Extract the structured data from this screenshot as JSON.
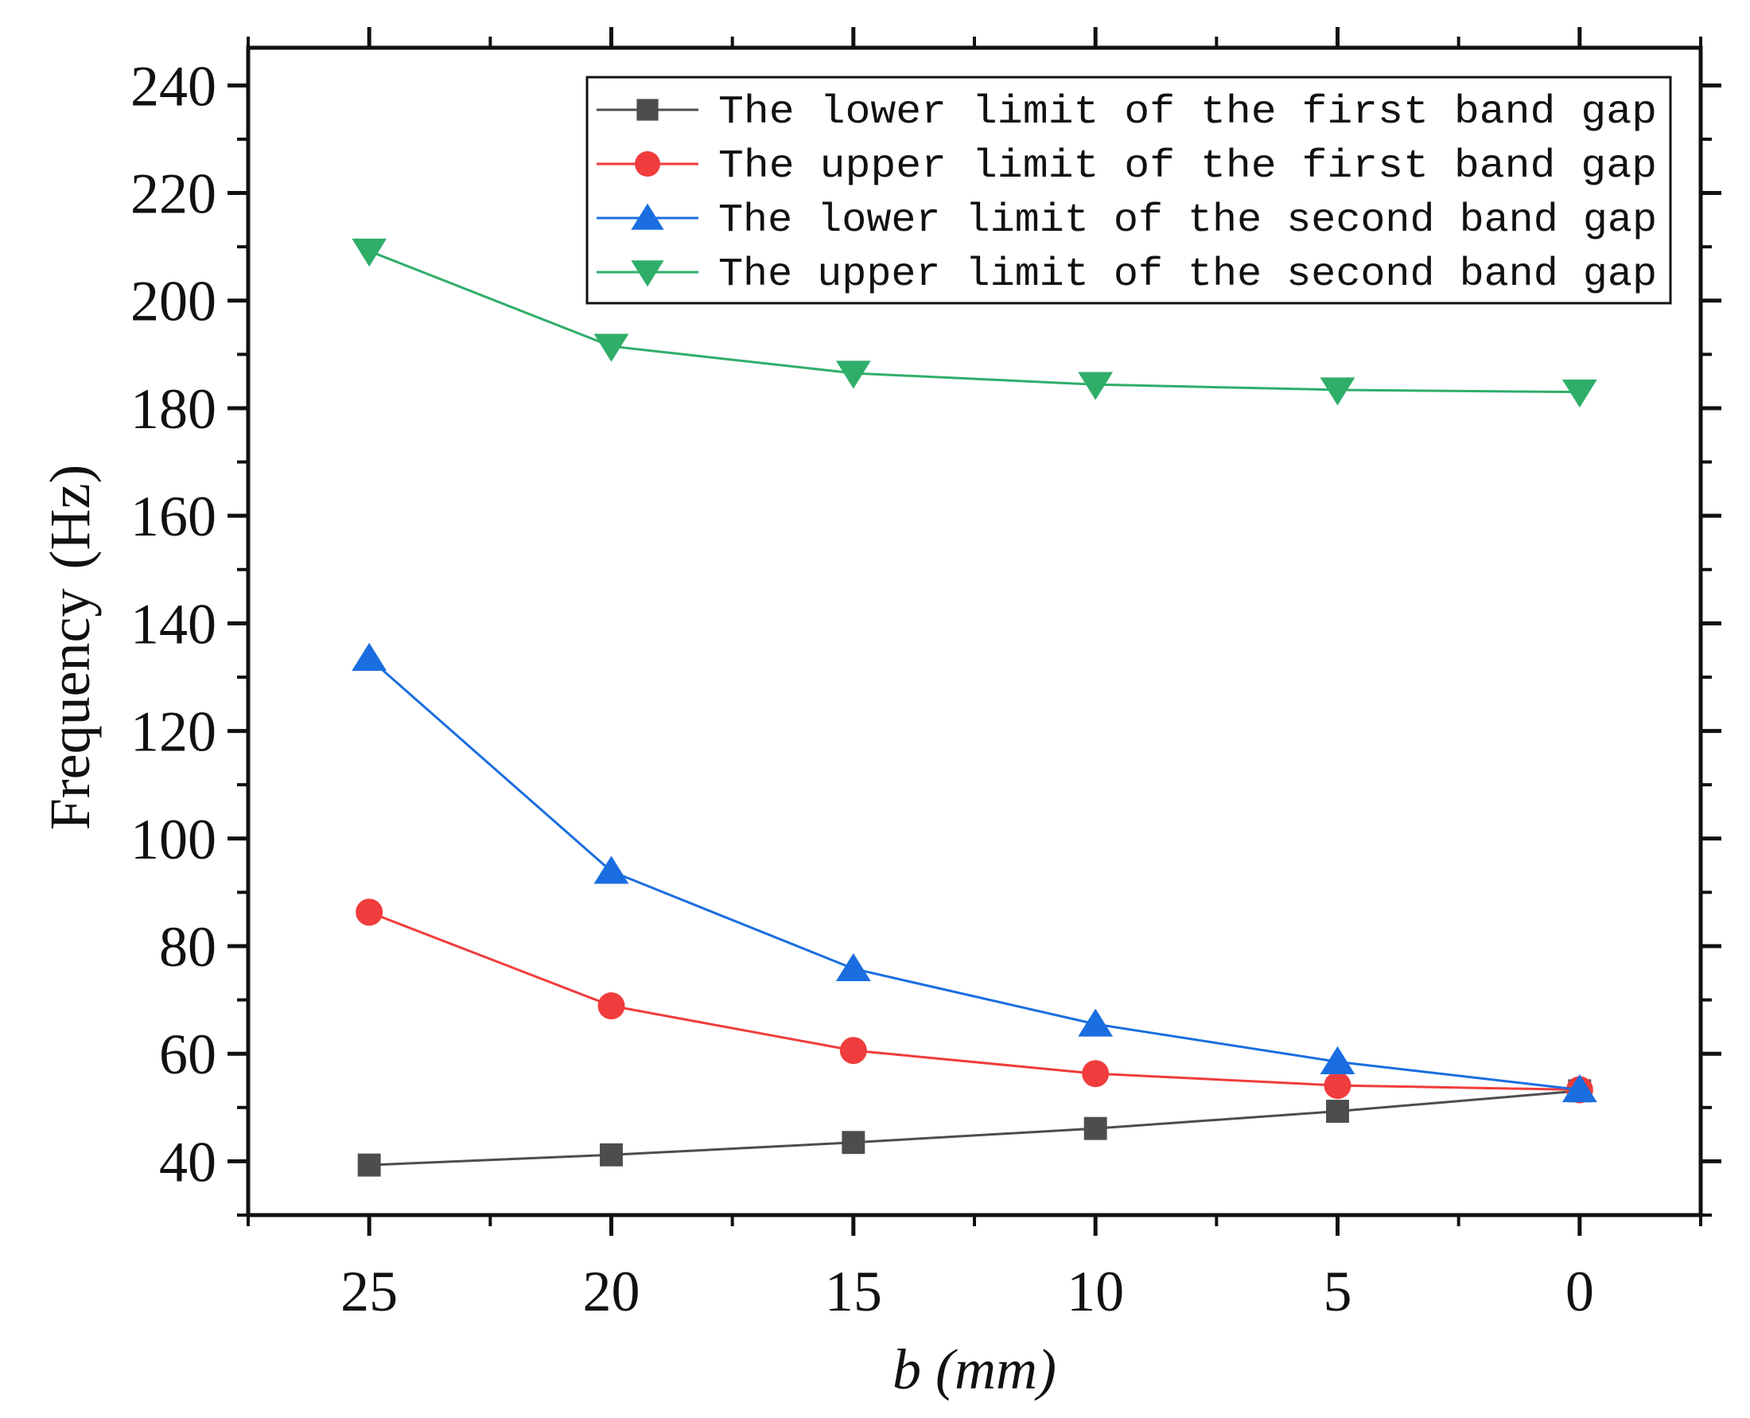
{
  "chart_data": {
    "type": "line",
    "title": "",
    "xlabel": "b (mm)",
    "xlabel_parts": {
      "var": "b",
      "unit": " (mm)"
    },
    "ylabel": "Frequency (Hz)",
    "ylabel_parts": {
      "word": "Frequency",
      "unit": "(Hz)"
    },
    "x": [
      25,
      20,
      15,
      10,
      5,
      0
    ],
    "xlim": [
      27.5,
      -2.5
    ],
    "ylim": [
      30,
      247
    ],
    "x_ticks": [
      25,
      20,
      15,
      10,
      5,
      0
    ],
    "x_tick_labels": [
      "25",
      "20",
      "15",
      "10",
      "5",
      "0"
    ],
    "y_ticks": [
      40,
      60,
      80,
      100,
      120,
      140,
      160,
      180,
      200,
      220,
      240
    ],
    "y_tick_labels": [
      "40",
      "60",
      "80",
      "100",
      "120",
      "140",
      "160",
      "180",
      "200",
      "220",
      "240"
    ],
    "grid": false,
    "legend_position": "top-right",
    "series": [
      {
        "name": "The lower limit of the first band gap",
        "color": "#4d4d4d",
        "marker": "square",
        "values": [
          39.3,
          41.2,
          43.5,
          46.1,
          49.3,
          53.1
        ]
      },
      {
        "name": "The upper limit of the first band gap",
        "color": "#f03c3c",
        "marker": "circle",
        "values": [
          86.3,
          68.9,
          60.6,
          56.3,
          54.1,
          53.3
        ]
      },
      {
        "name": "The lower limit of the second band gap",
        "color": "#1a6ee0",
        "marker": "triangle-up",
        "values": [
          133.5,
          93.9,
          75.8,
          65.5,
          58.5,
          53.3
        ]
      },
      {
        "name": "The upper limit of the second band gap",
        "color": "#2fae6a",
        "marker": "triangle-down",
        "values": [
          209.2,
          191.5,
          186.5,
          184.4,
          183.4,
          183.0
        ]
      }
    ]
  }
}
